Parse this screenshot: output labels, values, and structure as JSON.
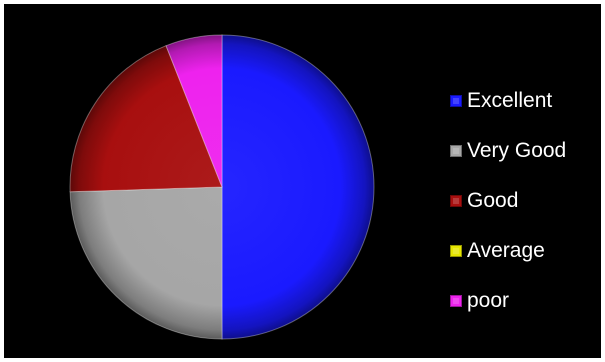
{
  "chart_data": {
    "type": "pie",
    "title": "",
    "categories": [
      "Excellent",
      "Very Good",
      "Good",
      "Average",
      "poor"
    ],
    "values": [
      50,
      24.5,
      19.5,
      0,
      6
    ],
    "colors": [
      "#1a1aff",
      "#a6a6a6",
      "#a80f0f",
      "#e6e600",
      "#ee22ee"
    ],
    "start_angle_deg": 0,
    "direction": "clockwise",
    "legend_position": "right",
    "background": "#000000"
  }
}
